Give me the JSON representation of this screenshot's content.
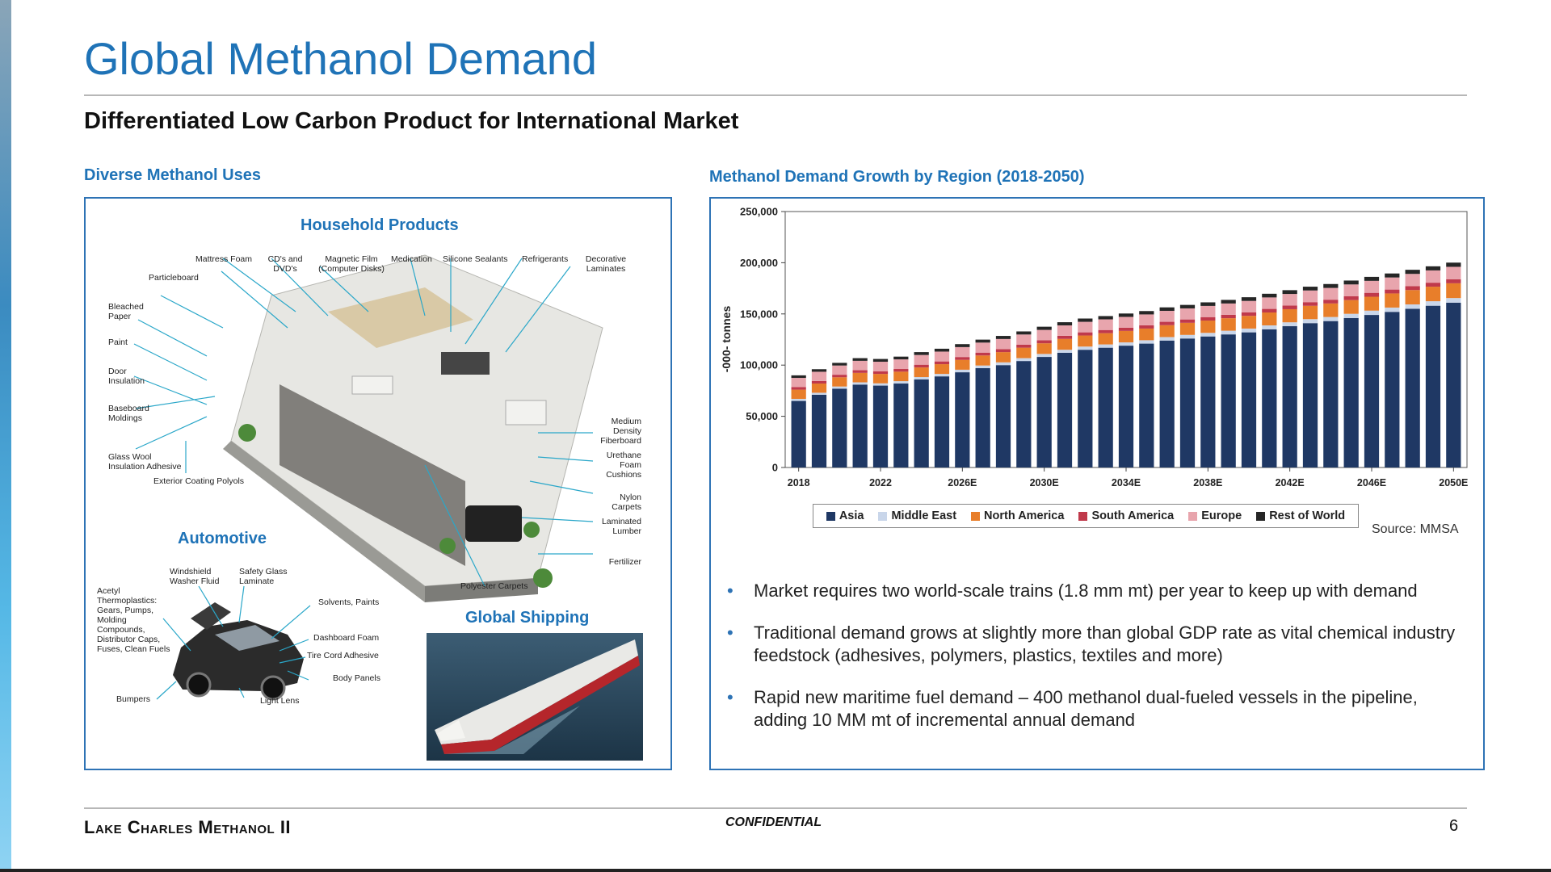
{
  "slide": {
    "title": "Global Methanol Demand",
    "subtitle": "Differentiated Low Carbon Product for International Market",
    "left_heading": "Diverse Methanol Uses",
    "right_heading": "Methanol Demand Growth by Region (2018-2050)",
    "source": "Source: MMSA",
    "page_number": "6",
    "footer_left": "Lake Charles Methanol II",
    "footer_center": "CONFIDENTIAL"
  },
  "uses": {
    "household_title": "Household Products",
    "automotive_title": "Automotive",
    "shipping_title": "Global Shipping",
    "household_labels": [
      "Mattress Foam",
      "CD's and DVD's",
      "Magnetic Film (Computer Disks)",
      "Medication",
      "Silicone Sealants",
      "Refrigerants",
      "Decorative Laminates",
      "Particleboard",
      "Bleached Paper",
      "Paint",
      "Door Insulation",
      "Baseboard Moldings",
      "Glass Wool Insulation Adhesive",
      "Exterior Coating Polyols",
      "Medium Density Fiberboard",
      "Urethane Foam Cushions",
      "Nylon Carpets",
      "Laminated Lumber",
      "Fertilizer",
      "Polyester Carpets"
    ],
    "automotive_labels": [
      "Windshield Washer Fluid",
      "Safety Glass Laminate",
      "Acetyl Thermoplastics: Gears, Pumps, Molding Compounds, Distributor Caps, Fuses, Clean Fuels",
      "Solvents, Paints",
      "Dashboard Foam",
      "Tire Cord Adhesive",
      "Body Panels",
      "Bumpers",
      "Light Lens"
    ]
  },
  "bullets": [
    "Market requires two world-scale trains (1.8 mm mt) per year to keep up with demand",
    "Traditional demand grows at slightly more than global GDP rate as vital chemical industry feedstock (adhesives, polymers, plastics, textiles and more)",
    "Rapid new maritime fuel demand – 400 methanol dual-fueled vessels in the pipeline, adding 10 MM mt of incremental annual demand"
  ],
  "chart_data": {
    "type": "bar",
    "stacked": true,
    "ylabel": "-000- tonnes",
    "ylim": [
      0,
      250000
    ],
    "yticks": [
      "0",
      "50,000",
      "100,000",
      "150,000",
      "200,000",
      "250,000"
    ],
    "xtick_labels": [
      "2018",
      "2022",
      "2026E",
      "2030E",
      "2034E",
      "2038E",
      "2042E",
      "2046E",
      "2050E"
    ],
    "categories": [
      "2018",
      "2019",
      "2020",
      "2021",
      "2022",
      "2023",
      "2024",
      "2025",
      "2026",
      "2027",
      "2028",
      "2029",
      "2030",
      "2031",
      "2032",
      "2033",
      "2034",
      "2035",
      "2036",
      "2037",
      "2038",
      "2039",
      "2040",
      "2041",
      "2042",
      "2043",
      "2044",
      "2045",
      "2046",
      "2047",
      "2048",
      "2049",
      "2050"
    ],
    "legend_position": "bottom",
    "grid": false,
    "series": [
      {
        "name": "Asia",
        "color": "#1f3864",
        "values": [
          65000,
          71000,
          77000,
          81000,
          80000,
          82000,
          86000,
          89000,
          93000,
          97000,
          100000,
          104000,
          108000,
          112000,
          115000,
          117000,
          119000,
          121000,
          124000,
          126000,
          128000,
          130000,
          132000,
          135000,
          138000,
          141000,
          143000,
          146000,
          149000,
          152000,
          155000,
          158000,
          161000
        ]
      },
      {
        "name": "Middle East",
        "color": "#c9d6ea",
        "values": [
          2000,
          2000,
          2100,
          2200,
          2200,
          2300,
          2300,
          2400,
          2500,
          2600,
          2700,
          2800,
          2900,
          3000,
          3100,
          3200,
          3200,
          3300,
          3400,
          3500,
          3500,
          3600,
          3700,
          3800,
          3800,
          3900,
          4000,
          4100,
          4200,
          4200,
          4300,
          4400,
          4500
        ]
      },
      {
        "name": "North America",
        "color": "#e87e2a",
        "values": [
          9000,
          9000,
          9000,
          9200,
          9200,
          9300,
          9400,
          9500,
          9600,
          9800,
          10000,
          10200,
          10400,
          10600,
          10800,
          11000,
          11200,
          11400,
          11600,
          11800,
          12000,
          12200,
          12400,
          12600,
          12800,
          13000,
          13200,
          13400,
          13600,
          13800,
          14000,
          14200,
          14400
        ]
      },
      {
        "name": "South America",
        "color": "#c0394b",
        "values": [
          2500,
          2500,
          2500,
          2600,
          2600,
          2600,
          2700,
          2700,
          2800,
          2800,
          2900,
          2900,
          3000,
          3000,
          3100,
          3100,
          3200,
          3200,
          3300,
          3300,
          3400,
          3400,
          3500,
          3500,
          3600,
          3600,
          3700,
          3700,
          3800,
          3800,
          3900,
          3900,
          4000
        ]
      },
      {
        "name": "Europe",
        "color": "#e8a5ad",
        "values": [
          9000,
          9000,
          9000,
          9200,
          9300,
          9400,
          9500,
          9600,
          9700,
          9800,
          9900,
          10000,
          10100,
          10200,
          10300,
          10400,
          10500,
          10600,
          10700,
          10800,
          10900,
          11000,
          11100,
          11200,
          11300,
          11400,
          11500,
          11600,
          11700,
          11800,
          11900,
          12000,
          12100
        ]
      },
      {
        "name": "Rest of World",
        "color": "#262626",
        "values": [
          2500,
          2500,
          2600,
          2600,
          2700,
          2700,
          2800,
          2800,
          2900,
          2900,
          3000,
          3000,
          3100,
          3100,
          3200,
          3200,
          3300,
          3300,
          3400,
          3400,
          3500,
          3500,
          3600,
          3600,
          3700,
          3700,
          3800,
          3800,
          3900,
          3900,
          4000,
          4000,
          4100
        ]
      }
    ]
  }
}
